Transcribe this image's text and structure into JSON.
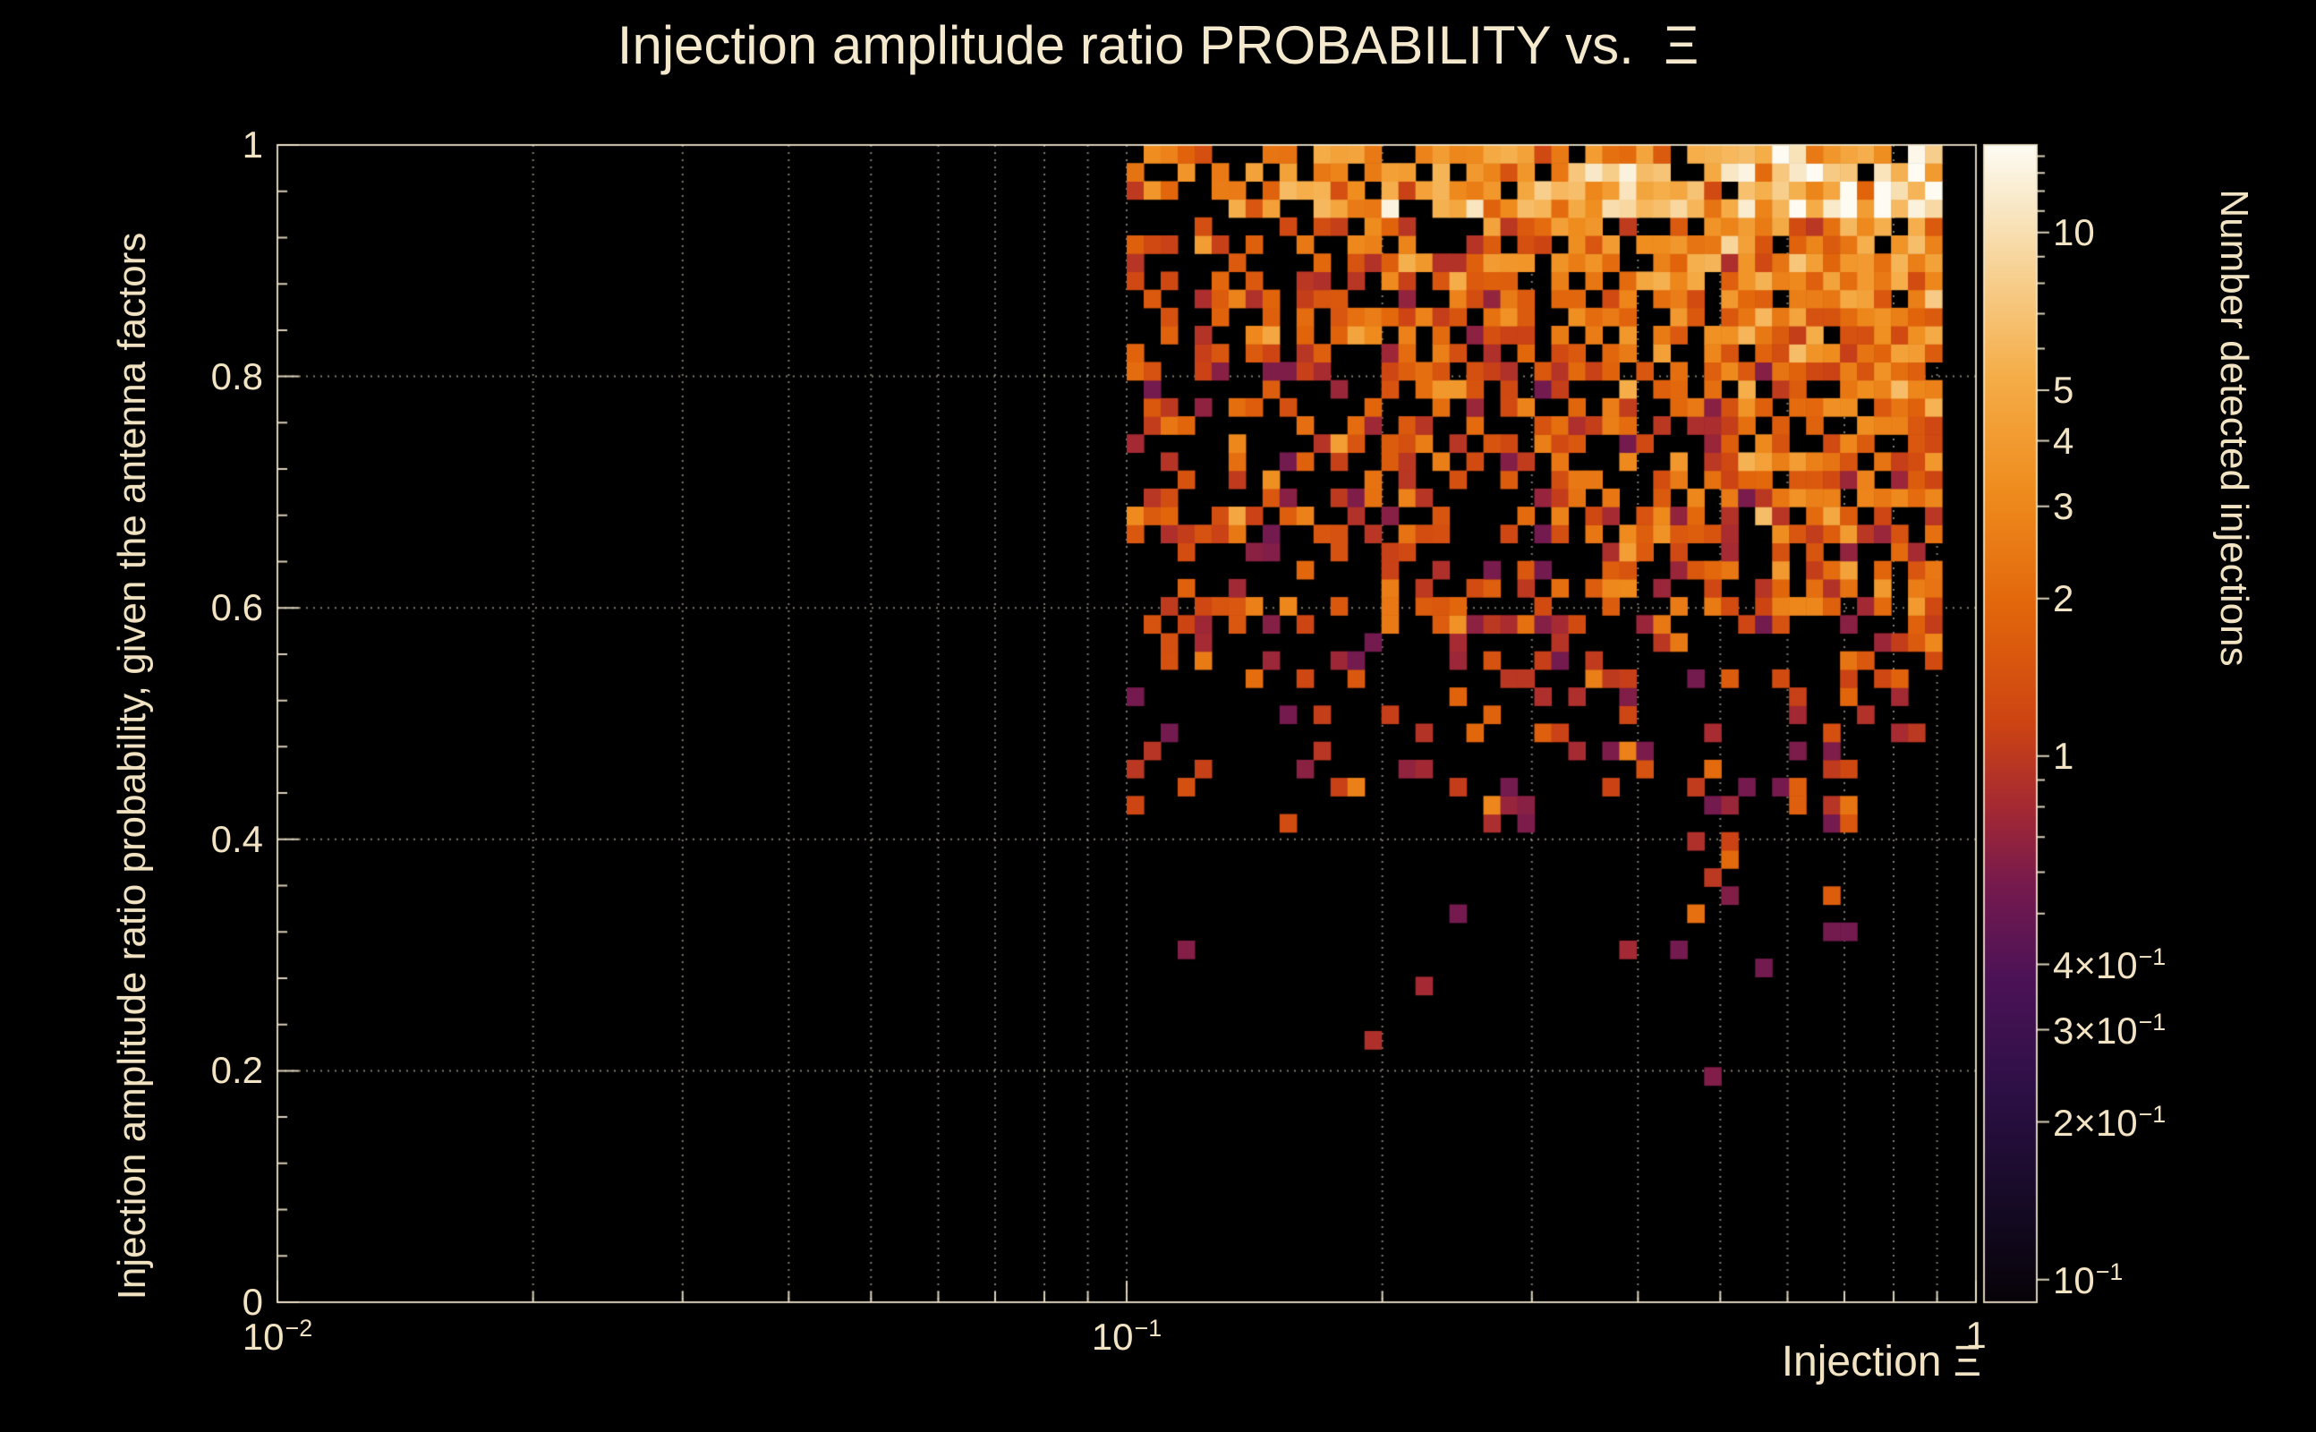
{
  "chart_data": {
    "type": "heatmap",
    "title": "Injection amplitude ratio PROBABILITY vs.  Ξ",
    "background": "#000000",
    "text_color": "#f2e3c2",
    "title_color": "#f5e9cd",
    "grid_style": "dotted",
    "x_axis": {
      "title": "Injection Ξ",
      "scale": "log",
      "min": 0.01,
      "max": 1,
      "ticks": [
        {
          "value": 0.01,
          "base": "10",
          "exp": "−2"
        },
        {
          "value": 0.1,
          "base": "10",
          "exp": "−1"
        },
        {
          "value": 1,
          "base": "1",
          "exp": ""
        }
      ]
    },
    "y_axis": {
      "title": "Injection amplitude ratio probability, given the antenna factors",
      "scale": "linear",
      "min": 0,
      "max": 1,
      "ticks": [
        {
          "value": 0,
          "label": "0"
        },
        {
          "value": 0.2,
          "label": "0.2"
        },
        {
          "value": 0.4,
          "label": "0.4"
        },
        {
          "value": 0.6,
          "label": "0.6"
        },
        {
          "value": 0.8,
          "label": "0.8"
        },
        {
          "value": 1,
          "label": "1"
        }
      ]
    },
    "colorbar": {
      "title": "Number detected injections",
      "scale": "log",
      "min": 0.0905,
      "max": 14.7,
      "ticks": [
        {
          "value": 10,
          "base": "10",
          "exp": ""
        },
        {
          "value": 5,
          "base": "5",
          "exp": ""
        },
        {
          "value": 4,
          "base": "4",
          "exp": ""
        },
        {
          "value": 3,
          "base": "3",
          "exp": ""
        },
        {
          "value": 2,
          "base": "2",
          "exp": ""
        },
        {
          "value": 1,
          "base": "1",
          "exp": ""
        },
        {
          "value": 0.4,
          "base": "4×10",
          "exp": "−1"
        },
        {
          "value": 0.3,
          "base": "3×10",
          "exp": "−1"
        },
        {
          "value": 0.2,
          "base": "2×10",
          "exp": "−1"
        },
        {
          "value": 0.1,
          "base": "10",
          "exp": "−1"
        }
      ]
    },
    "palette": [
      {
        "t": 0.0,
        "c": "#070308"
      },
      {
        "t": 0.08,
        "c": "#150a24"
      },
      {
        "t": 0.18,
        "c": "#2c1045"
      },
      {
        "t": 0.28,
        "c": "#4c1357"
      },
      {
        "t": 0.36,
        "c": "#761a4e"
      },
      {
        "t": 0.43,
        "c": "#a62a32"
      },
      {
        "t": 0.5,
        "c": "#cd4413"
      },
      {
        "t": 0.6,
        "c": "#e2660b"
      },
      {
        "t": 0.7,
        "c": "#ef8c1e"
      },
      {
        "t": 0.8,
        "c": "#f5ad48"
      },
      {
        "t": 0.88,
        "c": "#f7cd8a"
      },
      {
        "t": 0.95,
        "c": "#f9e9c8"
      },
      {
        "t": 1.0,
        "c": "#fefcf4"
      }
    ],
    "bins": {
      "nx": 100,
      "ny": 64
    },
    "distribution": {
      "seed": 20240613,
      "x_occupied_min": 0.1,
      "x_occupied_max": 0.92,
      "bands": [
        {
          "y_max": 0.08,
          "p": 0.006
        },
        {
          "y_max": 0.3,
          "p": 0.013
        },
        {
          "y_max": 0.42,
          "p": 0.05
        },
        {
          "y_max": 0.5,
          "p": 0.17
        },
        {
          "y_max": 0.58,
          "p": 0.3
        },
        {
          "y_max": 0.66,
          "p": 0.48
        },
        {
          "y_max": 0.8,
          "p": 0.62
        },
        {
          "y_max": 1.01,
          "p": 0.78
        }
      ],
      "x_gain_min": 0.5,
      "x_gain_max": 1.3,
      "value_base_log10": -0.02,
      "value_slope": 1.15,
      "value_sigma": 0.22,
      "top_y": 0.93,
      "top_value_boost": 0.3,
      "top_p_boost": 0.1,
      "v_min": 0.55,
      "v_max": 14.5
    }
  }
}
